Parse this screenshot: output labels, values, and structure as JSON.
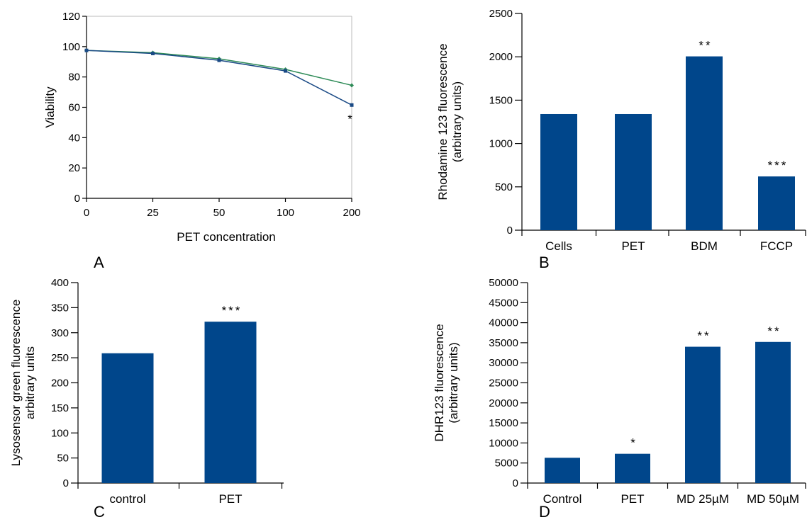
{
  "colors": {
    "bar": "#00468b",
    "series_blue": "#1a4a85",
    "series_green": "#2e8b57",
    "axis": "#000000",
    "background": "#ffffff"
  },
  "chart_data": [
    {
      "panel": "A",
      "type": "line",
      "xlabel": "PET concentration",
      "ylabel": "Viability",
      "categories": [
        "0",
        "25",
        "50",
        "100",
        "200"
      ],
      "ylim": [
        0,
        120
      ],
      "yticks": [
        0,
        20,
        40,
        60,
        80,
        100,
        120
      ],
      "series": [
        {
          "values": [
            97.5,
            95.5,
            91,
            84,
            61.5
          ],
          "color": "#1a4a85",
          "marker": "square"
        },
        {
          "values": [
            97.5,
            96,
            92,
            85,
            74.5
          ],
          "color": "#2e8b57",
          "marker": "diamond"
        }
      ],
      "annotations": [
        {
          "category": "200",
          "text": "*"
        }
      ]
    },
    {
      "panel": "B",
      "type": "bar",
      "ylabel_lines": [
        "Rhodamine 123 fluorescence",
        "(arbitrary units)"
      ],
      "categories": [
        "Cells",
        "PET",
        "BDM",
        "FCCP"
      ],
      "values": [
        1340,
        1340,
        2005,
        620
      ],
      "significance": [
        "",
        "",
        "**",
        "***"
      ],
      "ylim": [
        0,
        2500
      ],
      "yticks": [
        0,
        500,
        1000,
        1500,
        2000,
        2500
      ]
    },
    {
      "panel": "C",
      "type": "bar",
      "ylabel_lines": [
        "Lysosensor green fluorescence",
        "arbitrary units"
      ],
      "categories": [
        "control",
        "PET"
      ],
      "values": [
        259,
        322
      ],
      "significance": [
        "",
        "***"
      ],
      "ylim": [
        0,
        400
      ],
      "yticks": [
        0,
        50,
        100,
        150,
        200,
        250,
        300,
        350,
        400
      ]
    },
    {
      "panel": "D",
      "type": "bar",
      "ylabel_lines": [
        "DHR123 fluorescence",
        "(arbitrary units)"
      ],
      "categories": [
        "Control",
        "PET",
        "MD 25µM",
        "MD 50µM"
      ],
      "values": [
        6300,
        7300,
        34000,
        35200
      ],
      "significance": [
        "",
        "*",
        "**",
        "**"
      ],
      "ylim": [
        0,
        50000
      ],
      "yticks": [
        0,
        5000,
        10000,
        15000,
        20000,
        25000,
        30000,
        35000,
        40000,
        45000,
        50000
      ]
    }
  ]
}
